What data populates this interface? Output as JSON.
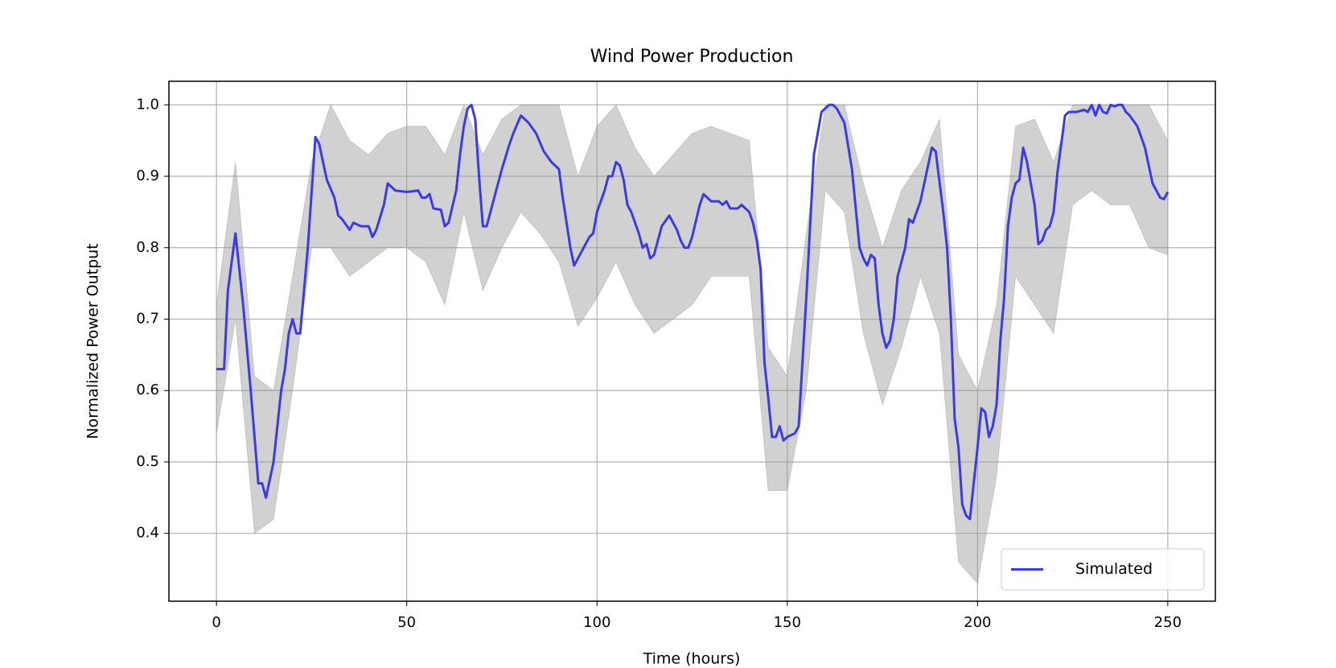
{
  "chart_data": {
    "type": "line",
    "title": "Wind Power Production",
    "xlabel": "Time (hours)",
    "ylabel": "Normalized Power Output",
    "xlim": [
      -12.5,
      262.5
    ],
    "ylim": [
      0.305,
      1.033
    ],
    "xticks": [
      0,
      50,
      100,
      150,
      200,
      250
    ],
    "yticks": [
      0.4,
      0.5,
      0.6,
      0.7,
      0.8,
      0.9,
      {
        "value": 1,
        "label": "1.0"
      }
    ],
    "grid": true,
    "legend": "lower right",
    "x": [
      0,
      2,
      3,
      5,
      7,
      9,
      11,
      12,
      13,
      15,
      17,
      18,
      19,
      20,
      21,
      22,
      24,
      26,
      27,
      29,
      31,
      32,
      33,
      35,
      36,
      38,
      40,
      41,
      42,
      44,
      45,
      47,
      50,
      53,
      54,
      55,
      56,
      57,
      59,
      60,
      61,
      63,
      64,
      65,
      66,
      67,
      68,
      69,
      70,
      71,
      73,
      75,
      77,
      78,
      80,
      82,
      84,
      86,
      88,
      90,
      91,
      93,
      94,
      96,
      98,
      99,
      100,
      102,
      103,
      104,
      105,
      106,
      107,
      108,
      109,
      111,
      112,
      113,
      114,
      115,
      117,
      119,
      121,
      122,
      123,
      124,
      125,
      127,
      128,
      130,
      132,
      133,
      134,
      135,
      137,
      138,
      140,
      141,
      142,
      143,
      144,
      145,
      146,
      147,
      148,
      149,
      150,
      152,
      153,
      154,
      155,
      157,
      159,
      161,
      162,
      163,
      165,
      167,
      169,
      170,
      171,
      172,
      173,
      174,
      175,
      176,
      177,
      178,
      179,
      181,
      182,
      183,
      185,
      187,
      188,
      189,
      191,
      192,
      193,
      194,
      195,
      196,
      197,
      198,
      199,
      200,
      201,
      202,
      203,
      204,
      205,
      206,
      207,
      208,
      209,
      210,
      211,
      212,
      213,
      215,
      216,
      217,
      218,
      219,
      220,
      221,
      223,
      224,
      226,
      228,
      229,
      230,
      231,
      232,
      233,
      234,
      235,
      236,
      237,
      238,
      239,
      240,
      242,
      244,
      246,
      248,
      249,
      250
    ],
    "series": [
      {
        "name": "Simulated",
        "color": "#3a3ae8",
        "values": [
          0.63,
          0.63,
          0.74,
          0.82,
          0.72,
          0.6,
          0.47,
          0.47,
          0.45,
          0.5,
          0.6,
          0.63,
          0.68,
          0.7,
          0.68,
          0.68,
          0.8,
          0.955,
          0.945,
          0.895,
          0.87,
          0.845,
          0.84,
          0.825,
          0.835,
          0.83,
          0.83,
          0.815,
          0.825,
          0.86,
          0.89,
          0.88,
          0.878,
          0.88,
          0.87,
          0.87,
          0.875,
          0.855,
          0.853,
          0.83,
          0.835,
          0.88,
          0.93,
          0.97,
          0.995,
          1.0,
          0.98,
          0.9,
          0.83,
          0.83,
          0.87,
          0.91,
          0.945,
          0.96,
          0.985,
          0.975,
          0.96,
          0.935,
          0.92,
          0.91,
          0.87,
          0.8,
          0.775,
          0.795,
          0.815,
          0.82,
          0.85,
          0.88,
          0.9,
          0.9,
          0.92,
          0.915,
          0.895,
          0.86,
          0.85,
          0.82,
          0.8,
          0.805,
          0.785,
          0.79,
          0.83,
          0.845,
          0.825,
          0.81,
          0.8,
          0.8,
          0.815,
          0.86,
          0.875,
          0.865,
          0.865,
          0.86,
          0.865,
          0.855,
          0.855,
          0.86,
          0.85,
          0.835,
          0.81,
          0.77,
          0.64,
          0.59,
          0.535,
          0.535,
          0.55,
          0.53,
          0.535,
          0.54,
          0.55,
          0.64,
          0.73,
          0.93,
          0.99,
          1.0,
          1.0,
          0.995,
          0.975,
          0.91,
          0.8,
          0.785,
          0.775,
          0.79,
          0.785,
          0.72,
          0.68,
          0.66,
          0.67,
          0.7,
          0.76,
          0.8,
          0.84,
          0.835,
          0.865,
          0.915,
          0.94,
          0.935,
          0.85,
          0.8,
          0.7,
          0.56,
          0.52,
          0.44,
          0.425,
          0.42,
          0.47,
          0.52,
          0.575,
          0.57,
          0.535,
          0.55,
          0.58,
          0.67,
          0.73,
          0.83,
          0.87,
          0.89,
          0.895,
          0.94,
          0.92,
          0.86,
          0.805,
          0.81,
          0.825,
          0.83,
          0.85,
          0.905,
          0.985,
          0.99,
          0.99,
          0.993,
          0.99,
          1.0,
          0.985,
          1.0,
          0.99,
          0.988,
          1.0,
          0.998,
          1.0,
          1.0,
          0.99,
          0.985,
          0.97,
          0.94,
          0.89,
          0.87,
          0.868,
          0.878
        ]
      }
    ],
    "band": {
      "color": "#9a9a9a",
      "x": [
        0,
        5,
        10,
        15,
        20,
        25,
        30,
        35,
        40,
        45,
        50,
        55,
        60,
        65,
        70,
        75,
        80,
        85,
        90,
        95,
        100,
        105,
        110,
        115,
        120,
        125,
        130,
        135,
        140,
        145,
        150,
        155,
        160,
        165,
        170,
        175,
        180,
        185,
        190,
        195,
        200,
        205,
        210,
        215,
        220,
        225,
        230,
        235,
        240,
        245,
        250
      ],
      "lower": [
        0.54,
        0.7,
        0.4,
        0.42,
        0.6,
        0.8,
        0.8,
        0.76,
        0.78,
        0.8,
        0.8,
        0.78,
        0.72,
        0.85,
        0.74,
        0.8,
        0.85,
        0.82,
        0.78,
        0.69,
        0.73,
        0.78,
        0.72,
        0.68,
        0.7,
        0.72,
        0.76,
        0.76,
        0.76,
        0.46,
        0.46,
        0.6,
        0.88,
        0.85,
        0.68,
        0.58,
        0.66,
        0.76,
        0.68,
        0.36,
        0.33,
        0.48,
        0.76,
        0.72,
        0.68,
        0.86,
        0.88,
        0.86,
        0.86,
        0.8,
        0.79
      ],
      "upper": [
        0.72,
        0.92,
        0.62,
        0.6,
        0.76,
        0.92,
        1.0,
        0.95,
        0.93,
        0.96,
        0.97,
        0.97,
        0.93,
        1.0,
        0.93,
        0.98,
        1.0,
        1.0,
        1.0,
        0.9,
        0.97,
        1.0,
        0.94,
        0.9,
        0.93,
        0.96,
        0.97,
        0.96,
        0.95,
        0.66,
        0.62,
        0.82,
        1.0,
        1.0,
        0.89,
        0.8,
        0.88,
        0.92,
        0.98,
        0.65,
        0.6,
        0.72,
        0.97,
        0.98,
        0.92,
        1.0,
        1.0,
        1.0,
        1.0,
        1.0,
        0.95
      ]
    }
  }
}
